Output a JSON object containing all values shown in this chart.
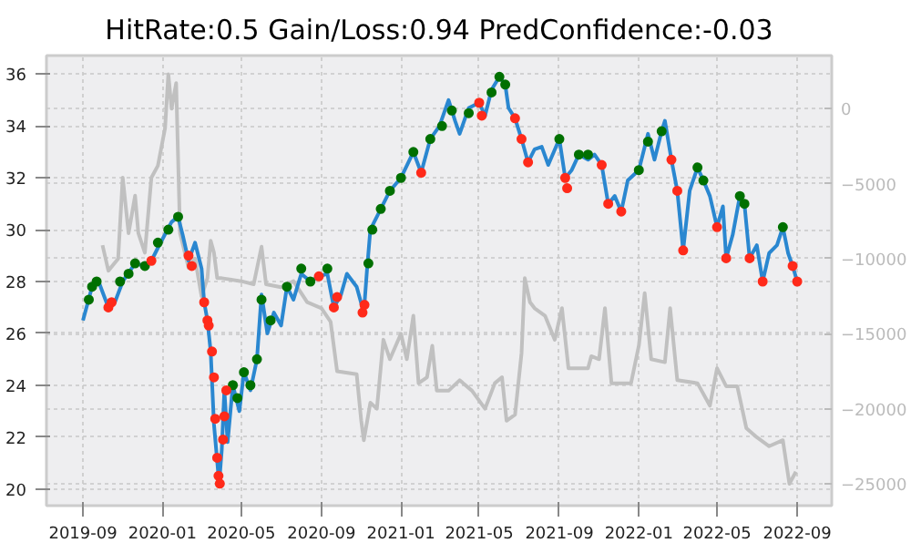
{
  "chart_data": {
    "type": "scatter",
    "title": "HitRate:0.5 Gain/Loss:0.94 PredConfidence:-0.03",
    "xlim": [
      "2019-07-07",
      "2022-10-24"
    ],
    "xticks": [
      "2019-09",
      "2020-01",
      "2020-05",
      "2020-09",
      "2021-01",
      "2021-05",
      "2021-09",
      "2022-01",
      "2022-05",
      "2022-09"
    ],
    "ylim": [
      19.35,
      36.72
    ],
    "yticks": [
      20,
      22,
      24,
      26,
      28,
      30,
      32,
      34,
      36
    ],
    "y2lim": [
      -26460,
      3540
    ],
    "y2ticks": [
      0,
      {
        "value": -5000,
        "label": "−5000"
      },
      {
        "value": -10000,
        "label": "−10000"
      },
      {
        "value": -15000,
        "label": "−15000"
      },
      {
        "value": -20000,
        "label": "−20000"
      },
      {
        "value": -25000,
        "label": "−25000"
      }
    ],
    "grid": true,
    "line_style": "solid",
    "series": [
      {
        "type": "line",
        "axis": "y2",
        "color": "#c0c0c0",
        "x": [
          "2019-10-01",
          "2019-10-10",
          "2019-10-25",
          "2019-11-01",
          "2019-11-10",
          "2019-11-20",
          "2019-11-25",
          "2019-12-05",
          "2019-12-15",
          "2019-12-25",
          "2020-01-05",
          "2020-01-10",
          "2020-01-15",
          "2020-01-22",
          "2020-01-28",
          "2020-02-10",
          "2020-02-20",
          "2020-03-01",
          "2020-03-10",
          "2020-03-15",
          "2020-03-20",
          "2020-03-25",
          "2020-04-01",
          "2020-05-01",
          "2020-05-20",
          "2020-06-01",
          "2020-06-08",
          "2020-07-01",
          "2020-07-20",
          "2020-08-10",
          "2020-09-01",
          "2020-09-15",
          "2020-09-25",
          "2020-10-25",
          "2020-11-01",
          "2020-11-05",
          "2020-11-15",
          "2020-11-25",
          "2020-12-05",
          "2020-12-15",
          "2021-01-01",
          "2021-01-10",
          "2021-01-20",
          "2021-01-28",
          "2021-02-10",
          "2021-02-18",
          "2021-02-25",
          "2021-03-15",
          "2021-04-01",
          "2021-04-20",
          "2021-05-10",
          "2021-05-25",
          "2021-06-05",
          "2021-06-12",
          "2021-06-25",
          "2021-07-05",
          "2021-07-10",
          "2021-07-18",
          "2021-07-25",
          "2021-08-10",
          "2021-08-25",
          "2021-09-05",
          "2021-09-15",
          "2021-10-15",
          "2021-10-20",
          "2021-11-01",
          "2021-11-10",
          "2021-11-20",
          "2021-12-20",
          "2022-01-01",
          "2022-01-10",
          "2022-01-20",
          "2022-02-10",
          "2022-02-18",
          "2022-03-01",
          "2022-04-01",
          "2022-04-20",
          "2022-05-01",
          "2022-05-15",
          "2022-06-01",
          "2022-06-15",
          "2022-07-01",
          "2022-07-20",
          "2022-08-10",
          "2022-08-20",
          "2022-08-30"
        ],
        "values": [
          -9100,
          -10800,
          -10000,
          -4600,
          -8300,
          -5800,
          -8300,
          -9600,
          -4600,
          -3800,
          -1300,
          2300,
          0,
          1700,
          -8300,
          -10600,
          -10000,
          -12500,
          -11300,
          -8800,
          -9600,
          -11300,
          -11300,
          -11500,
          -11700,
          -9200,
          -11700,
          -11900,
          -11500,
          -12900,
          -13300,
          -14200,
          -17500,
          -17700,
          -20800,
          -22100,
          -19600,
          -20000,
          -15400,
          -16700,
          -15000,
          -16700,
          -13800,
          -18300,
          -17900,
          -15800,
          -18800,
          -18800,
          -18100,
          -18800,
          -20000,
          -18300,
          -17900,
          -20800,
          -20400,
          -16300,
          -11300,
          -12900,
          -13300,
          -13800,
          -15400,
          -13300,
          -17300,
          -17300,
          -16500,
          -16700,
          -13300,
          -18300,
          -18300,
          -15800,
          -12300,
          -16700,
          -16900,
          -13300,
          -18100,
          -18300,
          -19800,
          -17300,
          -18500,
          -18500,
          -21300,
          -21900,
          -22500,
          -22100,
          -25000,
          -24200
        ]
      },
      {
        "type": "line",
        "color": "#2a87d0",
        "x": [
          "2019-09-01",
          "2019-09-15",
          "2019-09-25",
          "2019-10-10",
          "2019-10-20",
          "2019-11-01",
          "2019-11-20",
          "2019-12-05",
          "2019-12-15",
          "2019-12-25",
          "2020-01-15",
          "2020-01-25",
          "2020-02-01",
          "2020-02-10",
          "2020-02-20",
          "2020-03-01",
          "2020-03-05",
          "2020-03-10",
          "2020-03-15",
          "2020-03-20",
          "2020-03-28",
          "2020-04-01",
          "2020-04-05",
          "2020-04-10",
          "2020-04-18",
          "2020-04-28",
          "2020-05-05",
          "2020-05-15",
          "2020-05-25",
          "2020-06-01",
          "2020-06-10",
          "2020-06-20",
          "2020-07-01",
          "2020-07-10",
          "2020-07-20",
          "2020-08-01",
          "2020-08-15",
          "2020-08-28",
          "2020-09-10",
          "2020-09-20",
          "2020-10-01",
          "2020-10-10",
          "2020-10-25",
          "2020-11-05",
          "2020-11-10",
          "2020-11-15",
          "2020-12-01",
          "2020-12-15",
          "2021-01-01",
          "2021-01-20",
          "2021-02-01",
          "2021-02-15",
          "2021-03-01",
          "2021-03-15",
          "2021-03-25",
          "2021-04-01",
          "2021-04-15",
          "2021-05-01",
          "2021-05-10",
          "2021-05-20",
          "2021-06-01",
          "2021-06-10",
          "2021-06-15",
          "2021-06-25",
          "2021-07-05",
          "2021-07-15",
          "2021-07-25",
          "2021-08-05",
          "2021-08-15",
          "2021-09-01",
          "2021-09-10",
          "2021-09-20",
          "2021-10-01",
          "2021-10-15",
          "2021-10-25",
          "2021-11-05",
          "2021-11-15",
          "2021-11-25",
          "2021-12-05",
          "2021-12-15",
          "2022-01-01",
          "2022-01-15",
          "2022-01-25",
          "2022-02-05",
          "2022-02-10",
          "2022-02-20",
          "2022-03-01",
          "2022-03-10",
          "2022-03-20",
          "2022-04-01",
          "2022-04-10",
          "2022-04-20",
          "2022-05-01",
          "2022-05-10",
          "2022-05-15",
          "2022-05-25",
          "2022-06-05",
          "2022-06-12",
          "2022-06-20",
          "2022-07-01",
          "2022-07-10",
          "2022-07-20",
          "2022-08-01",
          "2022-08-10",
          "2022-08-18",
          "2022-08-25",
          "2022-09-01"
        ],
        "values": [
          26.5,
          27.8,
          28.0,
          27.0,
          27.2,
          28.0,
          28.7,
          28.6,
          28.8,
          29.3,
          30.3,
          30.5,
          29.8,
          28.8,
          29.5,
          28.5,
          27.2,
          26.5,
          25.3,
          22.5,
          20.2,
          21.5,
          23.8,
          21.8,
          24.0,
          23.0,
          24.5,
          23.8,
          25.0,
          27.5,
          26.0,
          26.8,
          26.3,
          27.8,
          27.3,
          28.3,
          28.0,
          28.2,
          28.3,
          27.0,
          27.5,
          28.3,
          27.8,
          26.8,
          28.5,
          30.0,
          30.8,
          31.5,
          32.0,
          33.0,
          32.2,
          33.5,
          34.0,
          35.0,
          34.2,
          33.7,
          34.7,
          34.9,
          34.4,
          35.4,
          35.9,
          35.6,
          34.7,
          34.3,
          33.5,
          32.6,
          33.1,
          33.2,
          32.5,
          33.5,
          32.0,
          32.3,
          32.9,
          32.7,
          32.9,
          32.5,
          31.0,
          31.3,
          30.7,
          31.9,
          32.3,
          33.7,
          32.7,
          33.8,
          34.2,
          32.7,
          31.5,
          29.2,
          31.5,
          32.4,
          31.9,
          31.3,
          30.1,
          30.9,
          28.9,
          29.8,
          31.3,
          31.0,
          28.9,
          29.4,
          28.0,
          29.1,
          29.4,
          30.1,
          29.1,
          28.6,
          28.0
        ]
      },
      {
        "marker": "circle",
        "color": "#007000",
        "x": [
          "2019-09-10",
          "2019-09-15",
          "2019-09-22",
          "2019-10-28",
          "2019-11-10",
          "2019-11-20",
          "2019-12-05",
          "2019-12-25",
          "2020-01-10",
          "2020-01-25",
          "2020-04-18",
          "2020-04-25",
          "2020-05-05",
          "2020-05-15",
          "2020-05-25",
          "2020-06-01",
          "2020-06-15",
          "2020-07-10",
          "2020-08-01",
          "2020-08-15",
          "2020-09-10",
          "2020-11-12",
          "2020-11-18",
          "2020-12-01",
          "2020-12-15",
          "2021-01-01",
          "2021-01-20",
          "2021-02-15",
          "2021-03-05",
          "2021-03-20",
          "2021-04-15",
          "2021-05-20",
          "2021-06-01",
          "2021-06-10",
          "2021-09-01",
          "2021-10-01",
          "2021-10-15",
          "2022-01-01",
          "2022-01-15",
          "2022-02-05",
          "2022-04-01",
          "2022-04-10",
          "2022-06-05",
          "2022-06-12",
          "2022-08-10"
        ],
        "values": [
          27.3,
          27.8,
          28.0,
          28.0,
          28.3,
          28.7,
          28.6,
          29.5,
          30.0,
          30.5,
          24.0,
          23.5,
          24.5,
          24.0,
          25.0,
          27.3,
          26.5,
          27.8,
          28.5,
          28.0,
          28.5,
          28.7,
          30.0,
          30.8,
          31.5,
          32.0,
          33.0,
          33.5,
          34.0,
          34.6,
          34.5,
          35.3,
          35.9,
          35.6,
          33.5,
          32.9,
          32.9,
          32.3,
          33.4,
          33.8,
          32.4,
          31.9,
          31.3,
          31.0,
          30.1
        ]
      },
      {
        "marker": "circle",
        "color": "#ff2a1a",
        "x": [
          "2019-10-10",
          "2019-10-15",
          "2019-12-15",
          "2020-02-10",
          "2020-02-15",
          "2020-03-05",
          "2020-03-10",
          "2020-03-12",
          "2020-03-17",
          "2020-03-20",
          "2020-03-22",
          "2020-03-25",
          "2020-03-27",
          "2020-03-29",
          "2020-04-03",
          "2020-04-05",
          "2020-04-08",
          "2020-08-28",
          "2020-09-20",
          "2020-09-25",
          "2020-11-03",
          "2020-11-06",
          "2021-02-01",
          "2021-05-01",
          "2021-05-05",
          "2021-06-25",
          "2021-07-05",
          "2021-07-15",
          "2021-09-10",
          "2021-09-13",
          "2021-11-05",
          "2021-11-15",
          "2021-12-05",
          "2022-02-20",
          "2022-03-01",
          "2022-03-10",
          "2022-05-01",
          "2022-05-15",
          "2022-06-20",
          "2022-07-10",
          "2022-08-25",
          "2022-09-01"
        ],
        "values": [
          27.0,
          27.2,
          28.8,
          29.0,
          28.6,
          27.2,
          26.5,
          26.3,
          25.3,
          24.3,
          22.7,
          21.2,
          20.5,
          20.2,
          21.9,
          22.8,
          23.8,
          28.2,
          27.0,
          27.4,
          26.8,
          27.1,
          32.2,
          34.9,
          34.4,
          34.3,
          33.5,
          32.6,
          32.0,
          31.6,
          32.5,
          31.0,
          30.7,
          32.7,
          31.5,
          29.2,
          30.1,
          28.9,
          28.9,
          28.0,
          28.6,
          28.0
        ]
      }
    ]
  }
}
